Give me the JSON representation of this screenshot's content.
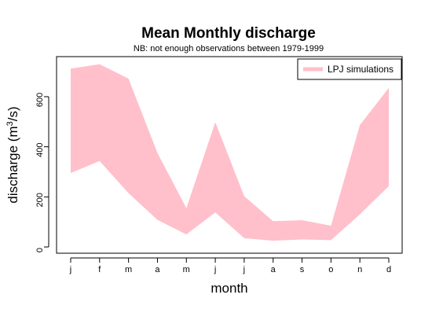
{
  "chart_data": {
    "type": "area",
    "title": "Mean Monthly discharge",
    "subtitle": "NB: not enough observations between 1979-1999",
    "xlabel": "month",
    "ylabel_main": "discharge (m",
    "ylabel_sup": "3",
    "ylabel_end": "/s)",
    "categories": [
      "j",
      "f",
      "m",
      "a",
      "m",
      "j",
      "j",
      "a",
      "s",
      "o",
      "n",
      "d"
    ],
    "y_ticks": [
      0,
      200,
      400,
      600
    ],
    "y_tick_labels": [
      "0",
      "200",
      "400",
      "600"
    ],
    "ylim": [
      -25,
      760
    ],
    "grid": false,
    "legend_position": "top-right",
    "series": [
      {
        "name": "LPJ simulations",
        "color": "#ffc0cb",
        "lower": [
          295,
          343,
          215,
          108,
          50,
          138,
          35,
          25,
          30,
          27,
          130,
          243
        ],
        "upper": [
          712,
          730,
          672,
          375,
          155,
          498,
          203,
          103,
          107,
          85,
          487,
          635
        ]
      }
    ]
  }
}
